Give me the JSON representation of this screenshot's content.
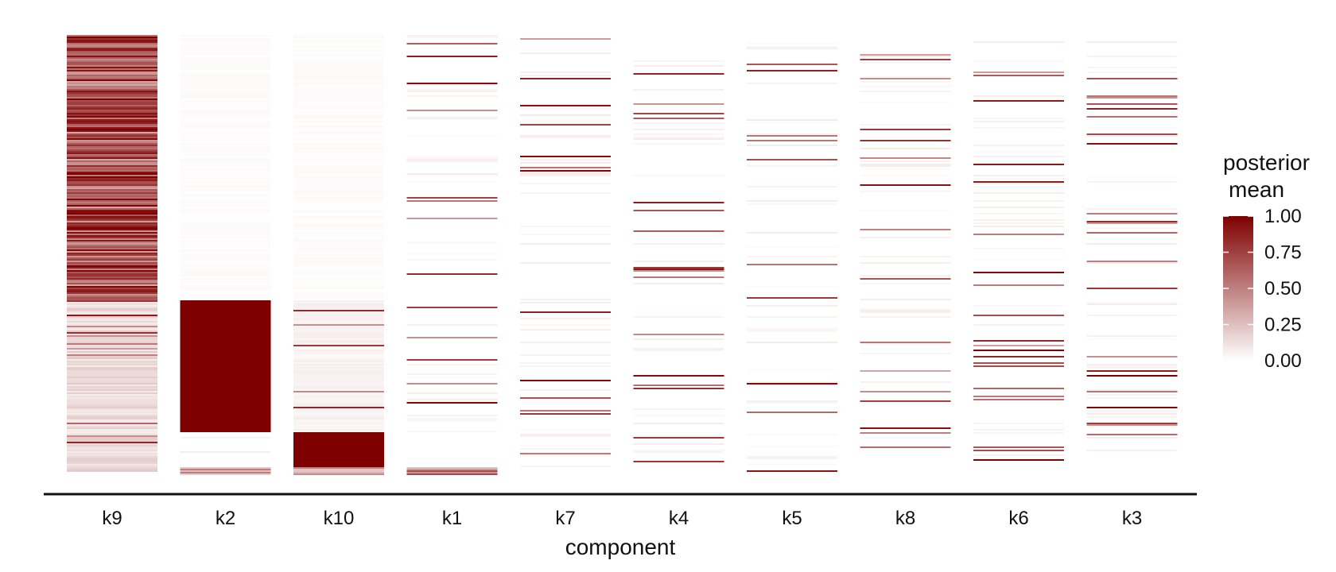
{
  "chart_data": {
    "type": "heatmap",
    "xlabel": "component",
    "categories": [
      "k9",
      "k2",
      "k10",
      "k1",
      "k7",
      "k4",
      "k5",
      "k8",
      "k6",
      "k3"
    ],
    "value_range": [
      0,
      1
    ],
    "colors": {
      "low": "#ffffff",
      "high": "#7f0000"
    },
    "legend": {
      "title_lines": [
        "posterior",
        "mean"
      ],
      "ticks": [
        "1.00",
        "0.75",
        "0.50",
        "0.25",
        "0.00"
      ],
      "placement": "right"
    },
    "grid": false,
    "columns": [
      {
        "name": "k9",
        "bands": [
          [
            0.0,
            0.6,
            0.85,
            0.3
          ],
          [
            0.6,
            0.99,
            0.18,
            0.1
          ]
        ]
      },
      {
        "name": "k2",
        "bands": [
          [
            0.0,
            0.6,
            0.02,
            0.0
          ],
          [
            0.6,
            0.9,
            1.0,
            0.0
          ],
          [
            0.9,
            0.98,
            0.0,
            0.0
          ],
          [
            0.98,
            1.0,
            0.45,
            0.0
          ]
        ]
      },
      {
        "name": "k10",
        "bands": [
          [
            0.0,
            0.6,
            0.02,
            0.0
          ],
          [
            0.6,
            0.9,
            0.06,
            0.03
          ],
          [
            0.9,
            0.98,
            1.0,
            0.0
          ],
          [
            0.98,
            1.0,
            0.45,
            0.0
          ]
        ]
      },
      {
        "name": "k1",
        "bands": [
          [
            0.0,
            0.55,
            0.0,
            0.03
          ],
          [
            0.55,
            0.98,
            0.0,
            0.04
          ],
          [
            0.98,
            1.0,
            0.6,
            0.0
          ]
        ]
      },
      {
        "name": "k7",
        "bands": [
          [
            0.0,
            0.58,
            0.0,
            0.05
          ],
          [
            0.58,
            0.98,
            0.0,
            0.06
          ]
        ]
      },
      {
        "name": "k4",
        "bands": [
          [
            0.0,
            0.58,
            0.0,
            0.05
          ],
          [
            0.58,
            0.97,
            0.0,
            0.06
          ]
        ]
      },
      {
        "name": "k5",
        "bands": [
          [
            0.0,
            0.6,
            0.0,
            0.05
          ],
          [
            0.6,
            0.99,
            0.0,
            0.03
          ]
        ]
      },
      {
        "name": "k8",
        "bands": [
          [
            0.0,
            0.6,
            0.0,
            0.04
          ],
          [
            0.6,
            0.98,
            0.0,
            0.04
          ]
        ]
      },
      {
        "name": "k6",
        "bands": [
          [
            0.0,
            0.58,
            0.0,
            0.05
          ],
          [
            0.58,
            0.97,
            0.0,
            0.07
          ]
        ]
      },
      {
        "name": "k3",
        "bands": [
          [
            0.0,
            0.58,
            0.0,
            0.05
          ],
          [
            0.58,
            0.95,
            0.0,
            0.05
          ]
        ]
      }
    ]
  }
}
